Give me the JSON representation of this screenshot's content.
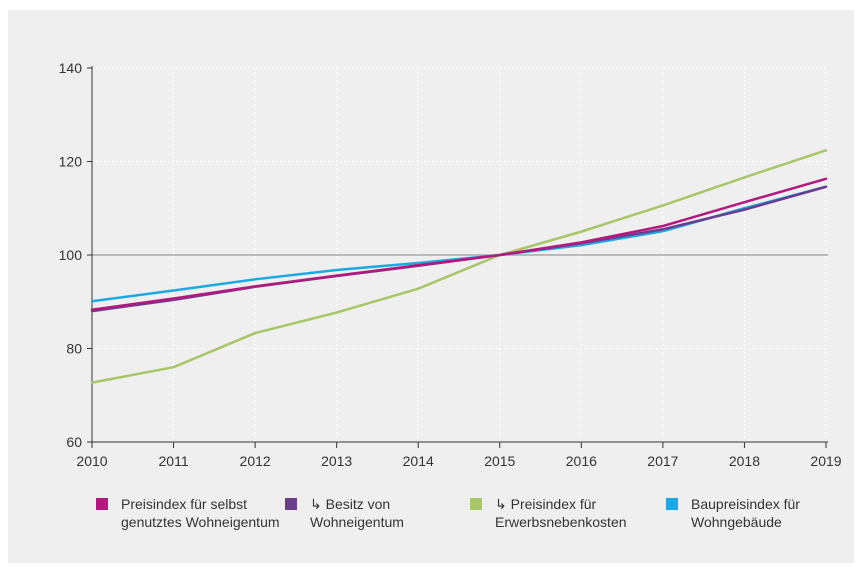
{
  "chart_data": {
    "type": "line",
    "x": [
      2010,
      2011,
      2012,
      2013,
      2014,
      2015,
      2016,
      2017,
      2018,
      2019
    ],
    "xticks": [
      "2010",
      "2011",
      "2012",
      "2013",
      "2014",
      "2015",
      "2016",
      "2017",
      "2018",
      "2019"
    ],
    "ylim": [
      60,
      140
    ],
    "yticks": [
      "60",
      "80",
      "100",
      "120",
      "140"
    ],
    "grid": true,
    "reference_line": 100,
    "legend_position": "bottom",
    "series": [
      {
        "name": "Preisindex für selbst\ngenutztes Wohneigentum",
        "color": "#b5177e",
        "values": [
          88.3,
          90.7,
          93.3,
          95.6,
          97.8,
          100.0,
          102.7,
          106.2,
          111.3,
          116.3
        ]
      },
      {
        "name": "↳ Besitz von\nWohneigentum",
        "color": "#6a3d8e",
        "values": [
          88.0,
          90.4,
          93.2,
          95.5,
          97.7,
          100.0,
          102.5,
          105.5,
          109.7,
          114.6
        ]
      },
      {
        "name": "↳ Preisindex für\nErwerbsnebenkosten",
        "color": "#a6c667",
        "values": [
          72.7,
          76.0,
          83.3,
          87.7,
          92.8,
          100.0,
          105.0,
          110.6,
          116.6,
          122.4
        ]
      },
      {
        "name": "Baupreisindex für\nWohngebäude",
        "color": "#1aa9e3",
        "values": [
          90.1,
          92.4,
          94.8,
          96.8,
          98.3,
          100.0,
          102.1,
          105.1,
          110.0,
          114.6
        ]
      }
    ]
  }
}
